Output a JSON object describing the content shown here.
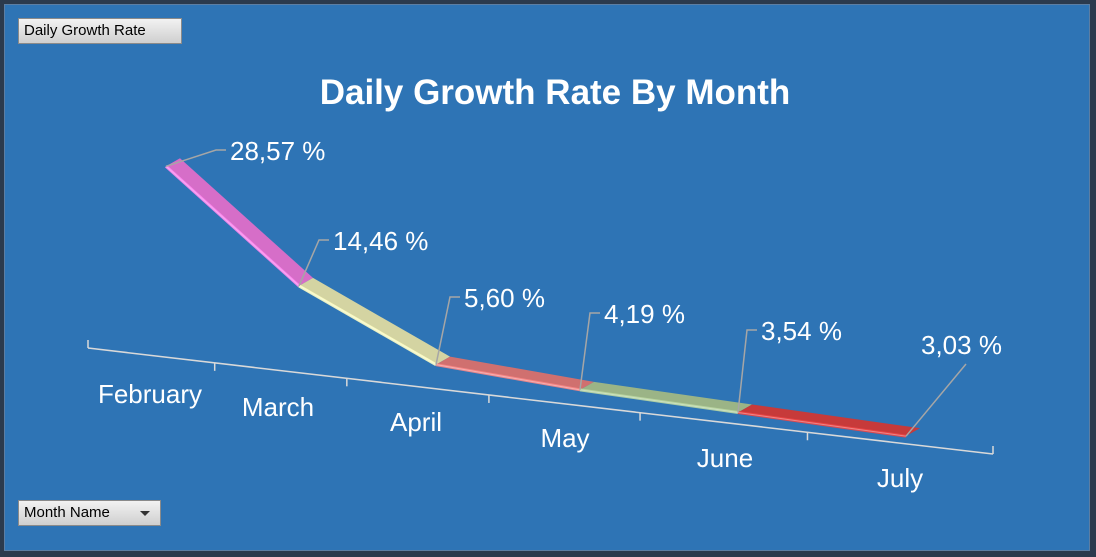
{
  "pivot_buttons": {
    "value_field": "Daily Growth Rate",
    "axis_field": "Month Name"
  },
  "chart_data": {
    "type": "line",
    "title": "Daily Growth Rate By Month",
    "categories": [
      "February",
      "March",
      "April",
      "May",
      "June",
      "July"
    ],
    "values": [
      28.57,
      14.46,
      5.6,
      4.19,
      3.54,
      3.03
    ],
    "data_labels": [
      "28,57 %",
      "14,46 %",
      "5,60 %",
      "4,19 %",
      "3,54 %",
      "3,03 %"
    ],
    "unit": "%",
    "style": "3d-ribbon",
    "segment_colors": [
      "#d66ec8",
      "#d4d4a2",
      "#d0706f",
      "#9bb486",
      "#c73a3a"
    ],
    "legend": "none",
    "grid": false
  }
}
